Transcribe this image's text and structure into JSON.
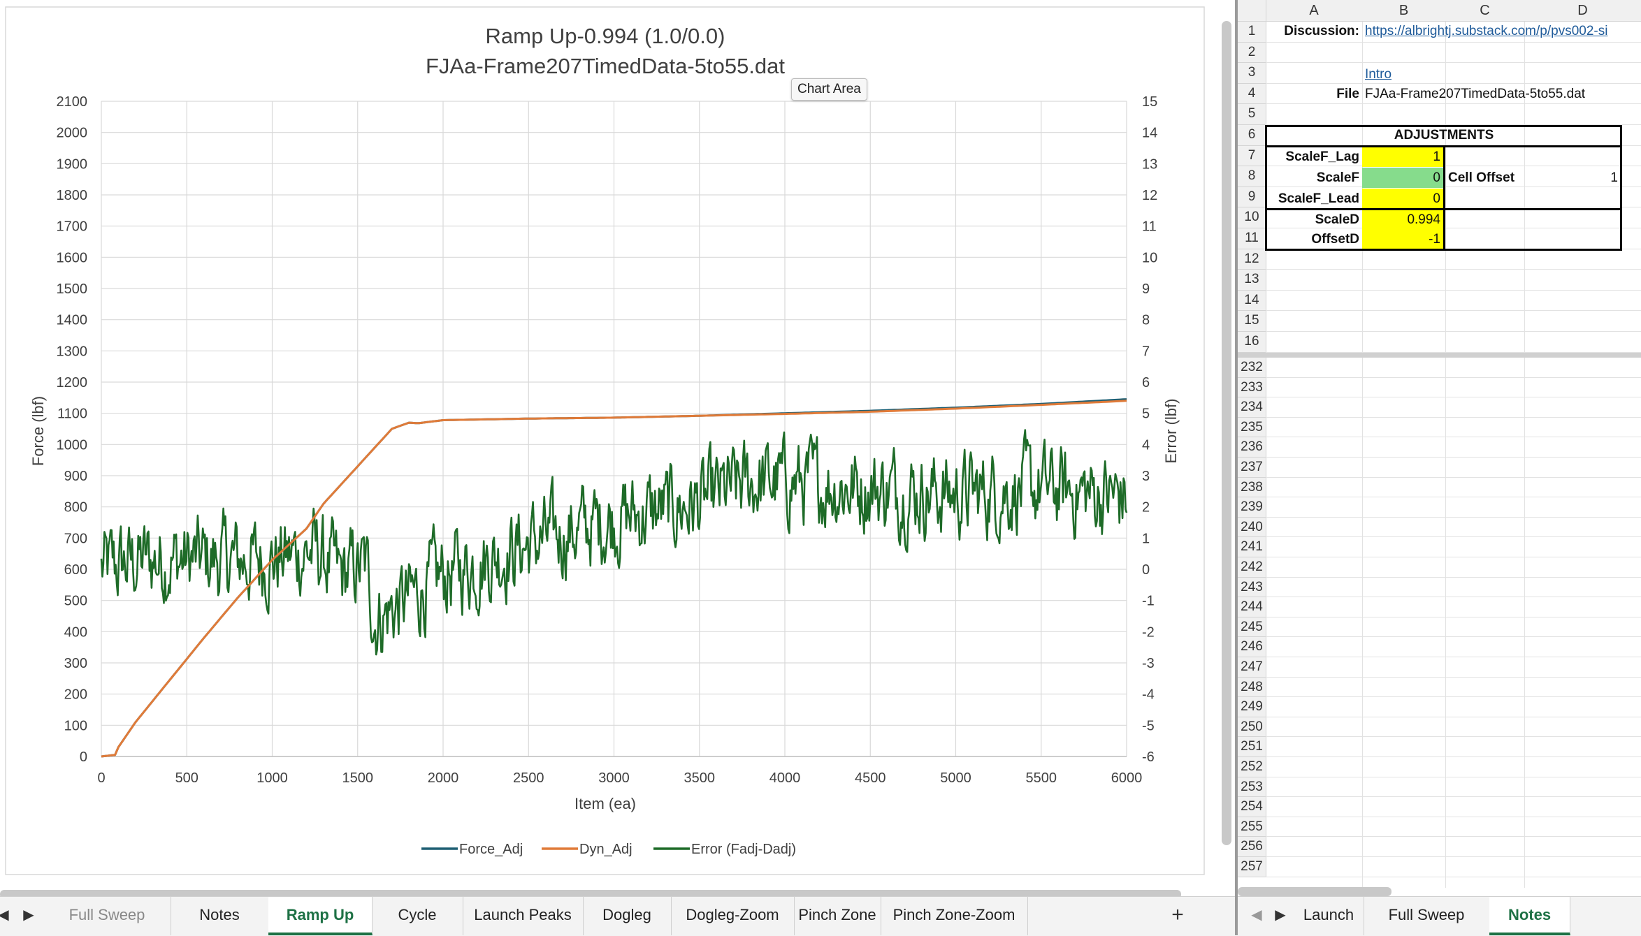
{
  "chart": {
    "tooltip": "Chart Area"
  },
  "chart_data": {
    "type": "line",
    "title": "Ramp Up-0.994 (1.0/0.0)",
    "subtitle": "FJAa-Frame207TimedData-5to55.dat",
    "xlabel": "Item (ea)",
    "ylabel": "Force (lbf)",
    "y2label": "Error (lbf)",
    "xlim": [
      0,
      6000
    ],
    "ylim": [
      0,
      2100
    ],
    "y2lim": [
      -6,
      15
    ],
    "x_ticks": [
      0,
      500,
      1000,
      1500,
      2000,
      2500,
      3000,
      3500,
      4000,
      4500,
      5000,
      5500,
      6000
    ],
    "y_ticks": [
      0,
      100,
      200,
      300,
      400,
      500,
      600,
      700,
      800,
      900,
      1000,
      1100,
      1200,
      1300,
      1400,
      1500,
      1600,
      1700,
      1800,
      1900,
      2000,
      2100
    ],
    "y2_ticks": [
      -6,
      -5,
      -4,
      -3,
      -2,
      -1,
      0,
      1,
      2,
      3,
      4,
      5,
      6,
      7,
      8,
      9,
      10,
      11,
      12,
      13,
      14,
      15
    ],
    "grid": true,
    "legend_position": "bottom",
    "series": [
      {
        "name": "Force_Adj",
        "axis": "left",
        "color": "#1f5f73",
        "x": [
          0,
          80,
          100,
          200,
          400,
          600,
          800,
          1000,
          1200,
          1300,
          1500,
          1700,
          1800,
          1850,
          2000,
          2500,
          3000,
          3500,
          4000,
          4500,
          5000,
          5500,
          6000
        ],
        "y": [
          0,
          5,
          30,
          110,
          245,
          380,
          510,
          630,
          730,
          810,
          930,
          1050,
          1070,
          1068,
          1078,
          1083,
          1086,
          1092,
          1100,
          1108,
          1118,
          1130,
          1145
        ]
      },
      {
        "name": "Dyn_Adj",
        "axis": "left",
        "color": "#e07b39",
        "x": [
          0,
          80,
          100,
          200,
          400,
          600,
          800,
          1000,
          1200,
          1300,
          1500,
          1700,
          1800,
          1850,
          2000,
          2500,
          3000,
          3500,
          4000,
          4500,
          5000,
          5500,
          6000
        ],
        "y": [
          0,
          5,
          30,
          110,
          245,
          380,
          510,
          630,
          730,
          810,
          930,
          1050,
          1070,
          1068,
          1078,
          1083,
          1086,
          1092,
          1098,
          1105,
          1115,
          1127,
          1140
        ]
      },
      {
        "name": "Error (Fadj-Dadj)",
        "axis": "right",
        "color": "#1e6b28",
        "x": [
          0,
          250,
          500,
          750,
          1000,
          1250,
          1400,
          1550,
          1600,
          1700,
          2000,
          2500,
          3000,
          3500,
          3800,
          4000,
          4500,
          5000,
          5500,
          6000
        ],
        "y": [
          0.0,
          0.3,
          0.3,
          0.3,
          0.3,
          0.6,
          -0.2,
          0.1,
          -1.6,
          -1.3,
          -0.2,
          0.8,
          1.6,
          2.1,
          2.8,
          2.8,
          2.6,
          2.4,
          2.6,
          2.3
        ]
      }
    ]
  },
  "left_tabs": {
    "items": [
      {
        "label": "Full Sweep"
      },
      {
        "label": "Notes"
      },
      {
        "label": "Ramp Up"
      },
      {
        "label": "Cycle"
      },
      {
        "label": "Launch Peaks"
      },
      {
        "label": "Dogleg"
      },
      {
        "label": "Dogleg-Zoom"
      },
      {
        "label": "Pinch Zone"
      },
      {
        "label": "Pinch Zone-Zoom"
      }
    ],
    "active": "Ramp Up",
    "prev": "◀",
    "next": "▶",
    "add": "+"
  },
  "right_tabs": {
    "items": [
      {
        "label": "Launch"
      },
      {
        "label": "Full Sweep"
      },
      {
        "label": "Notes"
      }
    ],
    "active": "Notes",
    "prev": "◀",
    "next": "▶"
  },
  "sheet": {
    "columns": [
      "A",
      "B",
      "C",
      "D"
    ],
    "top_rows": [
      "1",
      "2",
      "3",
      "4",
      "5",
      "6",
      "7",
      "8",
      "9",
      "10",
      "11",
      "12",
      "13",
      "14",
      "15",
      "16"
    ],
    "bottom_rows": [
      "232",
      "233",
      "234",
      "235",
      "236",
      "237",
      "238",
      "239",
      "240",
      "241",
      "242",
      "243",
      "244",
      "245",
      "246",
      "247",
      "248",
      "249",
      "250",
      "251",
      "252",
      "253",
      "254",
      "255",
      "256",
      "257"
    ],
    "cells": {
      "a1": "Discussion:",
      "b1": "https://albrightj.substack.com/p/pvs002-si",
      "b3": "Intro",
      "a4": "File",
      "b4": "FJAa-Frame207TimedData-5to55.dat",
      "adjustments": "ADJUSTMENTS",
      "a7": "ScaleF_Lag",
      "b7": "1",
      "a8": "ScaleF",
      "b8": "0",
      "c8": "Cell Offset",
      "d8": "1",
      "a9": "ScaleF_Lead",
      "b9": "0",
      "a10": "ScaleD",
      "b10": "0.994",
      "a11": "OffsetD",
      "b11": "-1"
    }
  }
}
